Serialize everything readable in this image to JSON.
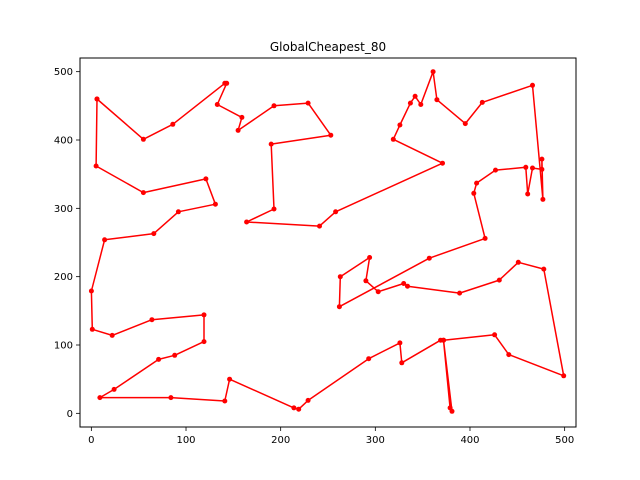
{
  "chart_data": {
    "type": "line",
    "title": "GlobalCheapest_80",
    "xlabel": "",
    "ylabel": "",
    "xlim": [
      -12,
      512
    ],
    "ylim": [
      -20,
      520
    ],
    "xticks": [
      0,
      100,
      200,
      300,
      400,
      500
    ],
    "yticks": [
      0,
      100,
      200,
      300,
      400,
      500
    ],
    "grid": false,
    "legend": "none",
    "series": [
      {
        "color": "#ff0000",
        "marker": "circle",
        "x": [
          6,
          5,
          55,
          121,
          131,
          92,
          66,
          14,
          0,
          1,
          22,
          64,
          119,
          119,
          88,
          71,
          24,
          9,
          84,
          141,
          146,
          214,
          219,
          229,
          293,
          326,
          328,
          369,
          372,
          379,
          381,
          372,
          426,
          441,
          499,
          478,
          451,
          431,
          389,
          334,
          330,
          303,
          290,
          294,
          263,
          262,
          357,
          416,
          404,
          407,
          427,
          459,
          461,
          466,
          476,
          476,
          477,
          466,
          413,
          395,
          365,
          361,
          348,
          342,
          337,
          326,
          319,
          371,
          258,
          241,
          164,
          193,
          190,
          253,
          229,
          193,
          155,
          159,
          133,
          143,
          141,
          86,
          55,
          6
        ],
        "y": [
          460,
          362,
          323,
          343,
          306,
          295,
          263,
          254,
          179,
          123,
          114,
          137,
          144,
          105,
          85,
          79,
          35,
          23,
          23,
          18,
          50,
          8,
          6,
          19,
          80,
          103,
          74,
          107,
          107,
          8,
          3,
          107,
          115,
          86,
          55,
          211,
          221,
          195,
          176,
          186,
          190,
          178,
          194,
          228,
          200,
          156,
          227,
          256,
          322,
          337,
          356,
          360,
          321,
          359,
          357,
          372,
          313,
          480,
          455,
          424,
          459,
          500,
          452,
          464,
          454,
          422,
          401,
          366,
          295,
          274,
          280,
          299,
          394,
          407,
          454,
          450,
          414,
          433,
          452,
          483,
          483,
          423,
          401,
          460
        ]
      }
    ]
  }
}
